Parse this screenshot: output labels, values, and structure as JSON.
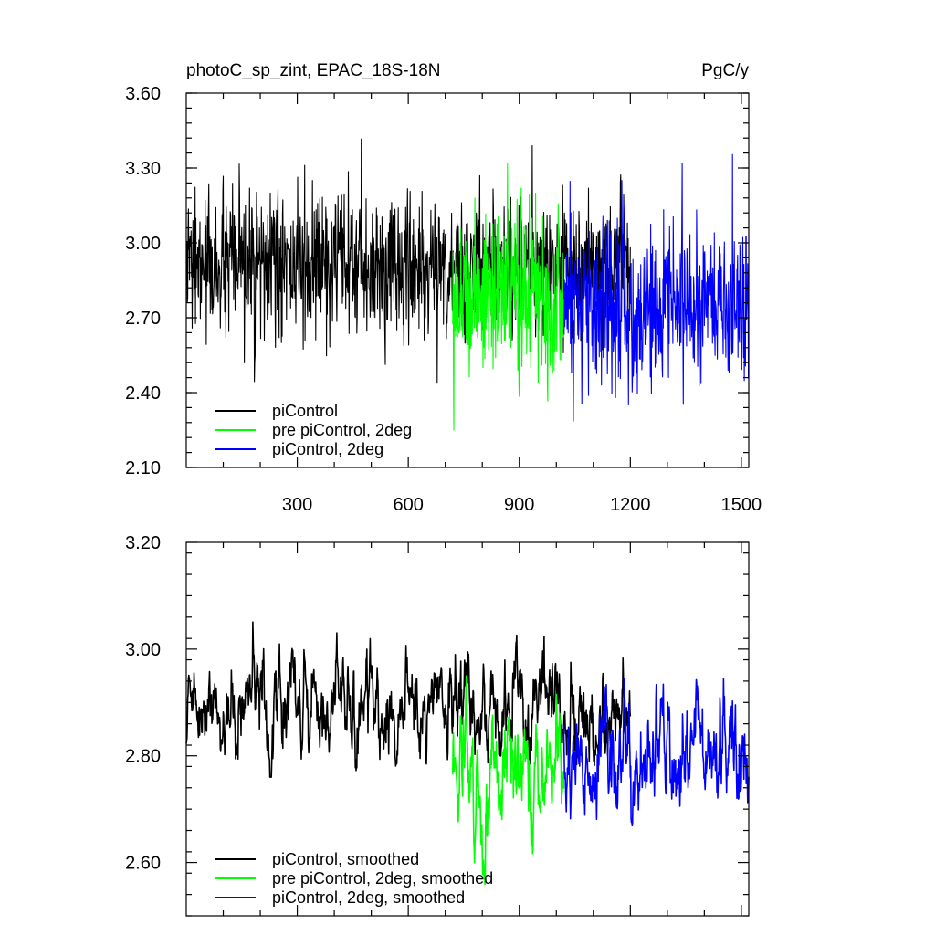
{
  "page": {
    "title_left": "photoC_sp_zint, EPAC_18S-18N",
    "title_right": "PgC/y"
  },
  "chart_data": [
    {
      "type": "line",
      "panel": "top",
      "title": "photoC_sp_zint, EPAC_18S-18N",
      "units": "PgC/y",
      "xlim": [
        0,
        1520
      ],
      "ylim": [
        2.1,
        3.6
      ],
      "xticks": [
        300,
        600,
        900,
        1200,
        1500
      ],
      "xtick_labels": [
        "300",
        "600",
        "900",
        "1200",
        "1500"
      ],
      "yticks": [
        2.1,
        2.4,
        2.7,
        3.0,
        3.3,
        3.6
      ],
      "ytick_labels": [
        "2.10",
        "2.40",
        "2.70",
        "3.00",
        "3.30",
        "3.60"
      ],
      "legend_position": "bottom-left",
      "series": [
        {
          "name": "piControl",
          "color": "#000000",
          "x_range": [
            0,
            1200
          ],
          "mean": 2.9,
          "spread": 0.14,
          "min": 2.34,
          "max": 3.51
        },
        {
          "name": "pre piControl, 2deg",
          "color": "#00ff00",
          "x_range": [
            720,
            1020
          ],
          "mean": 2.8,
          "spread": 0.17,
          "min": 2.25,
          "max": 3.48
        },
        {
          "name": "piControl, 2deg",
          "color": "#0000ff",
          "x_range": [
            1020,
            1520
          ],
          "mean": 2.75,
          "spread": 0.17,
          "min": 2.15,
          "max": 3.43
        }
      ]
    },
    {
      "type": "line",
      "panel": "bottom",
      "xlim": [
        0,
        1520
      ],
      "ylim": [
        2.5,
        3.2
      ],
      "xticks": [
        300,
        600,
        900,
        1200,
        1500
      ],
      "yticks": [
        2.6,
        2.8,
        3.0,
        3.2
      ],
      "ytick_labels": [
        "2.60",
        "2.80",
        "3.00",
        "3.20"
      ],
      "legend_position": "bottom-left",
      "series": [
        {
          "name": "piControl, smoothed",
          "color": "#000000",
          "x_range": [
            0,
            1200
          ],
          "mean": 2.89,
          "spread": 0.05,
          "min": 2.76,
          "max": 3.11
        },
        {
          "name": "pre piControl, 2deg, smoothed",
          "color": "#00ff00",
          "x_range": [
            720,
            1020
          ],
          "mean": 2.78,
          "spread": 0.06,
          "min": 2.54,
          "max": 2.96
        },
        {
          "name": "piControl, 2deg, smoothed",
          "color": "#0000ff",
          "x_range": [
            1020,
            1520
          ],
          "mean": 2.8,
          "spread": 0.06,
          "min": 2.57,
          "max": 2.96
        }
      ]
    }
  ]
}
